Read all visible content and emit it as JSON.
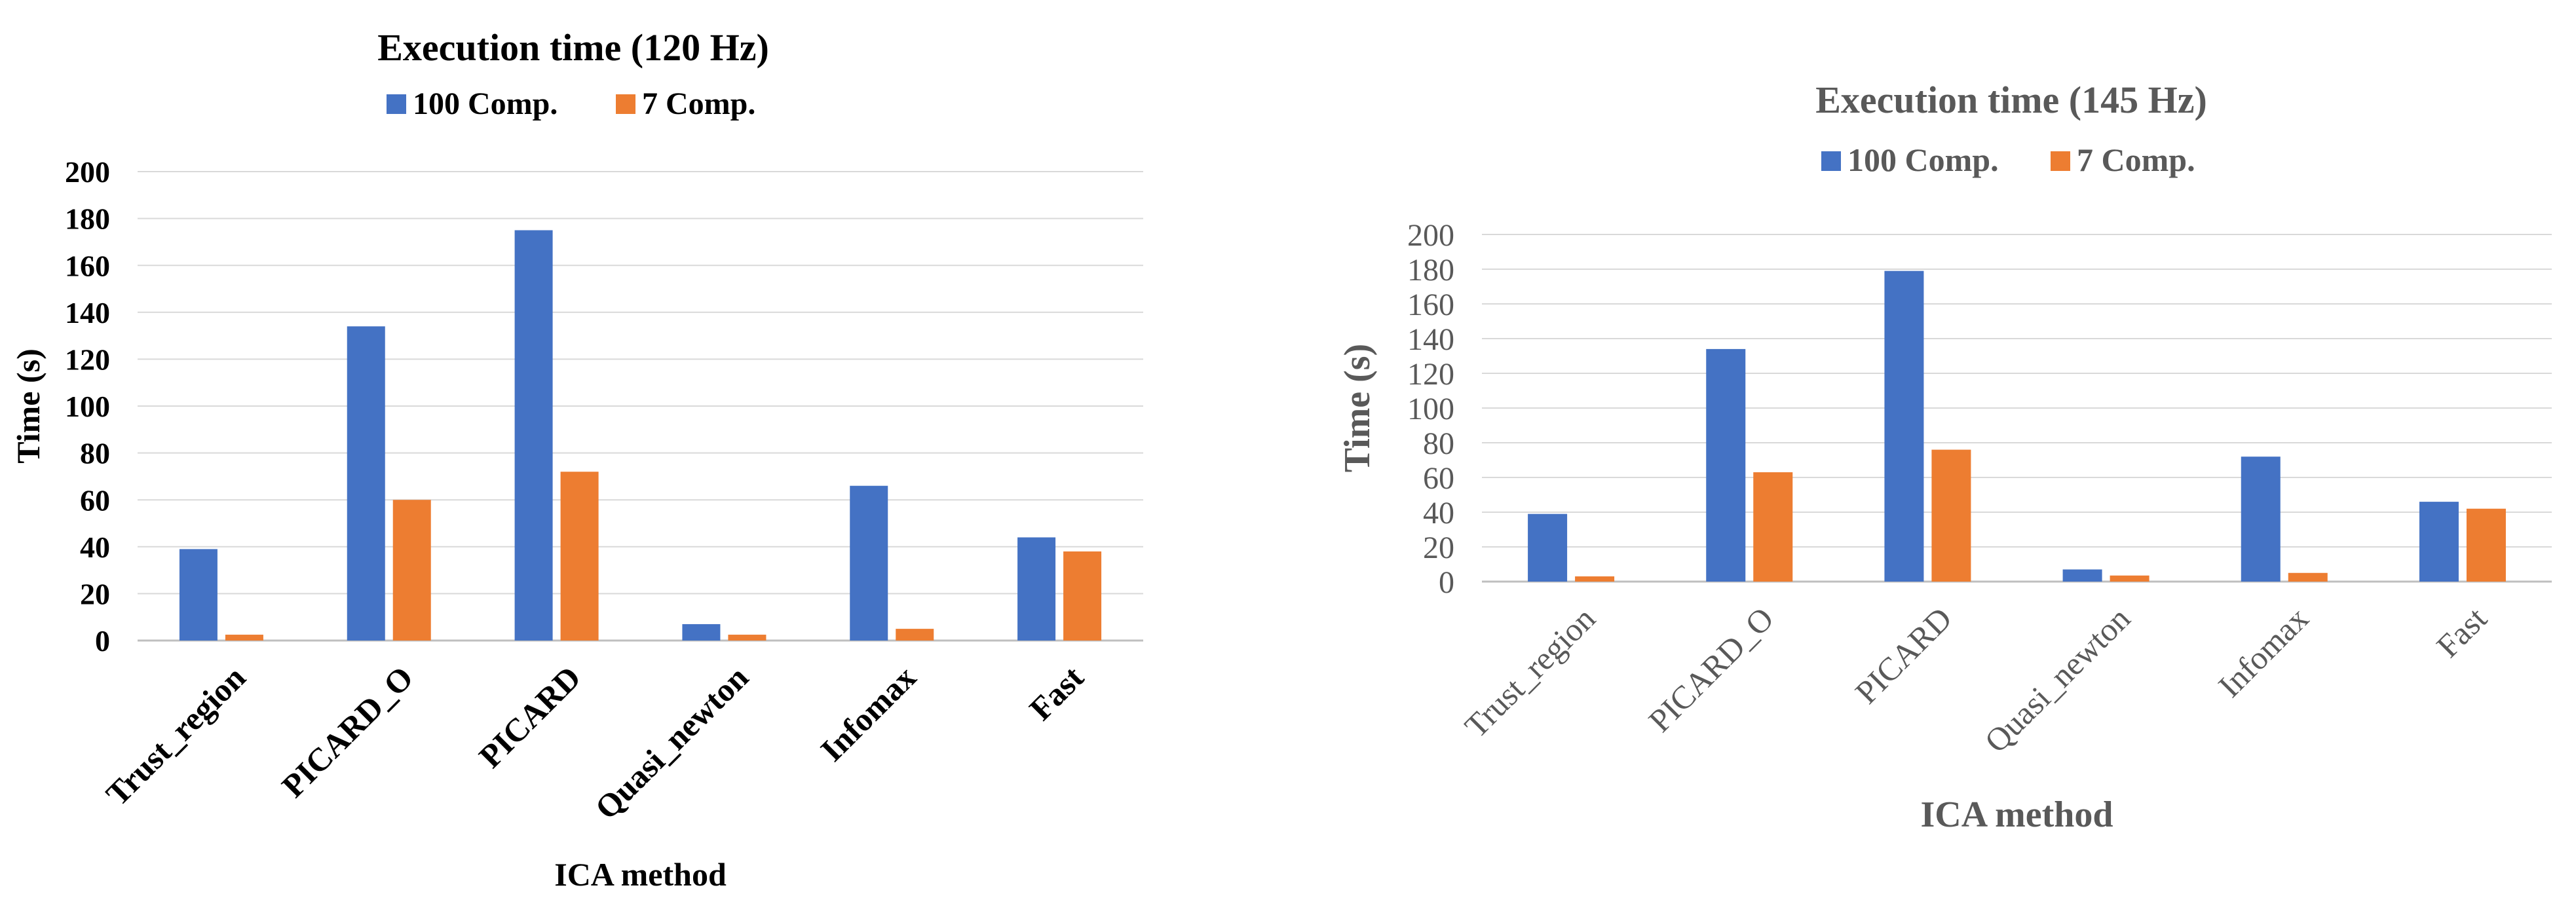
{
  "chart_data": [
    {
      "type": "bar",
      "title": "Execution time (120 Hz)",
      "xlabel": "ICA method",
      "ylabel": "Time (s)",
      "categories": [
        "Trust_region",
        "PICARD_O",
        "PICARD",
        "Quasi_newton",
        "Infomax",
        "Fast"
      ],
      "series": [
        {
          "name": "100 Comp.",
          "values": [
            39,
            134,
            175,
            7,
            66,
            44
          ]
        },
        {
          "name": "7 Comp.",
          "values": [
            2.5,
            60,
            72,
            2.5,
            5,
            38
          ]
        }
      ],
      "ylim": [
        0,
        200
      ],
      "yticks": [
        "0",
        "20",
        "40",
        "60",
        "80",
        "100",
        "120",
        "140",
        "160",
        "180",
        "200"
      ],
      "grid": true,
      "legend": "top",
      "colors": [
        "#4472C4",
        "#ED7D31"
      ],
      "text_color": "#000000"
    },
    {
      "type": "bar",
      "title": "Execution time (145 Hz)",
      "xlabel": "ICA method",
      "ylabel": "Time (s)",
      "categories": [
        "Trust_region",
        "PICARD_O",
        "PICARD",
        "Quasi_newton",
        "Infomax",
        "Fast"
      ],
      "series": [
        {
          "name": "100 Comp.",
          "values": [
            39,
            134,
            179,
            7,
            72,
            46
          ]
        },
        {
          "name": "7 Comp.",
          "values": [
            3,
            63,
            76,
            3.5,
            5,
            42
          ]
        }
      ],
      "ylim": [
        0,
        200
      ],
      "yticks": [
        "0",
        "20",
        "40",
        "60",
        "80",
        "100",
        "120",
        "140",
        "160",
        "180",
        "200"
      ],
      "grid": true,
      "legend": "top",
      "colors": [
        "#4472C4",
        "#ED7D31"
      ],
      "text_color": "#595959"
    }
  ]
}
